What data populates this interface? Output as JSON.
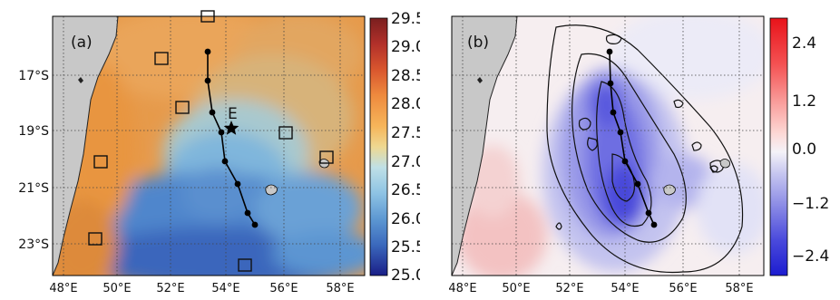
{
  "figure": {
    "panels": [
      {
        "label": "(a)",
        "point_label": "E",
        "lat_ticks": [
          "17°S",
          "19°S",
          "21°S",
          "23°S"
        ],
        "lon_ticks": [
          "48°E",
          "50°E",
          "52°E",
          "54°E",
          "56°E",
          "58°E"
        ],
        "colorbar_ticks": [
          "29.5",
          "29.0",
          "28.5",
          "28.0",
          "27.5",
          "27.0",
          "26.5",
          "26.0",
          "25.5",
          "25.0"
        ],
        "colorbar_colors": [
          "#7a1f1f",
          "#b2302a",
          "#d9562e",
          "#ee8a3e",
          "#f6b55a",
          "#eed891",
          "#bfe0e6",
          "#8ec3e4",
          "#5d98d2",
          "#3b69bd",
          "#2641a4",
          "#1a1e87"
        ]
      },
      {
        "label": "(b)",
        "lat_ticks": [],
        "lon_ticks": [
          "48°E",
          "50°E",
          "52°E",
          "54°E",
          "56°E",
          "58°E"
        ],
        "colorbar_ticks": [
          "2.4",
          "1.2",
          "0.0",
          "−1.2",
          "−2.4"
        ],
        "colorbar_colors": [
          "#e8131a",
          "#f45253",
          "#f99a98",
          "#fdd9d6",
          "#f4f2f8",
          "#c8c8f0",
          "#8f8fe6",
          "#4b4bdc",
          "#1c1cd0"
        ]
      }
    ],
    "colors": {
      "land": "#c8c8c8",
      "ocean_warm": "#e69a4b",
      "ocean_cold": "#3f6fc2",
      "anomaly_neutral": "#f6eef0",
      "track": "#000000"
    },
    "icons": [
      "star-icon",
      "square-marker-icon"
    ]
  }
}
